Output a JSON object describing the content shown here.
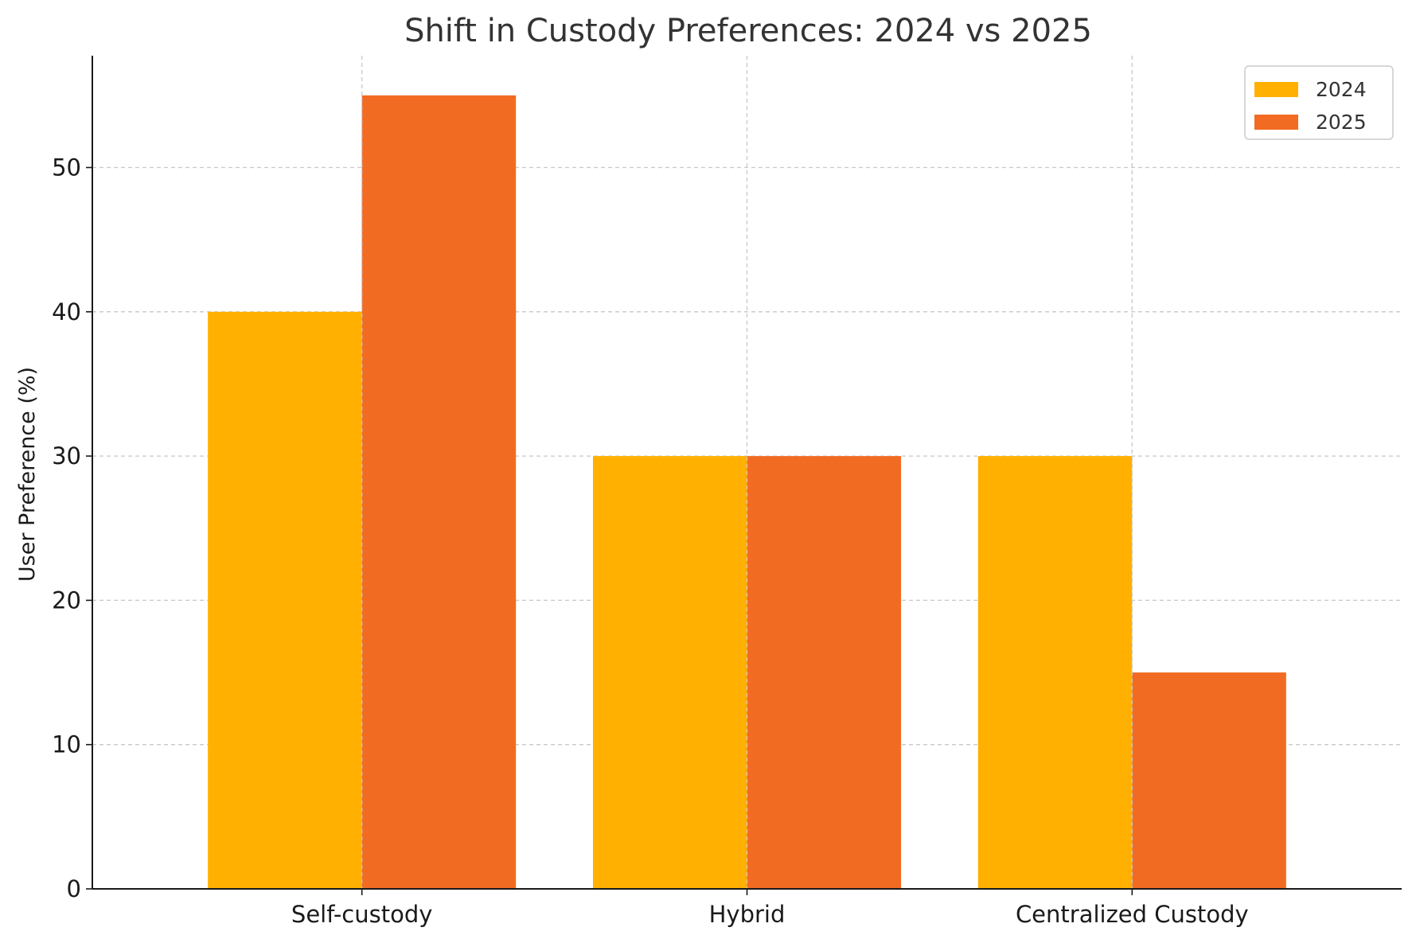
{
  "chart_data": {
    "type": "bar",
    "title": "Shift in Custody Preferences: 2024 vs 2025",
    "xlabel": "",
    "ylabel": "User Preference (%)",
    "categories": [
      "Self-custody",
      "Hybrid",
      "Centralized Custody"
    ],
    "series": [
      {
        "name": "2024",
        "values": [
          40,
          30,
          30
        ],
        "color": "#FFB000"
      },
      {
        "name": "2025",
        "values": [
          55,
          30,
          15
        ],
        "color": "#F26B23"
      }
    ],
    "ylim": [
      0,
      57.75
    ],
    "yticks": [
      0,
      10,
      20,
      30,
      40,
      50
    ],
    "grid": true,
    "legend_position": "top-right"
  }
}
